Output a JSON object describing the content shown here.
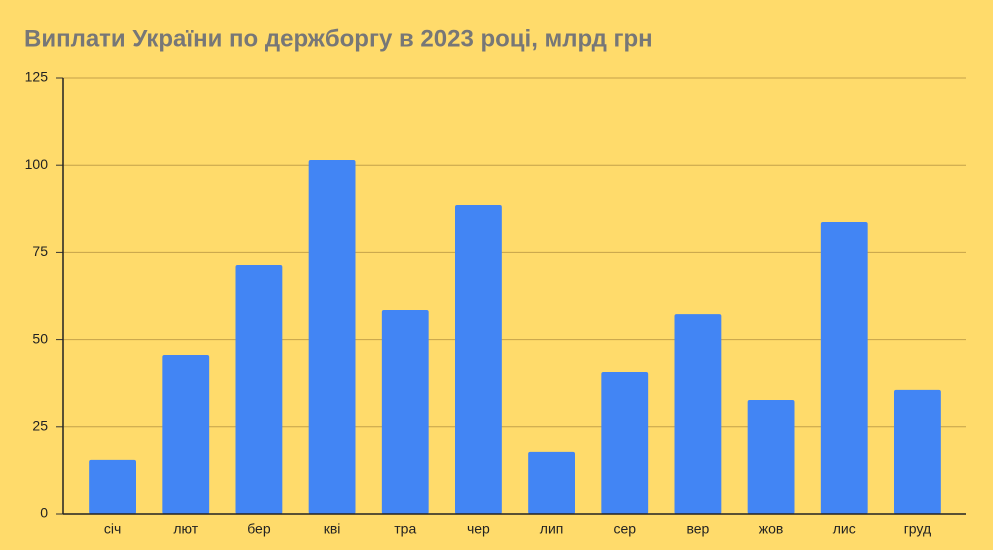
{
  "chart_data": {
    "type": "bar",
    "title": "Виплати України по держборгу в 2023 році, млрд грн",
    "categories": [
      "січ",
      "лют",
      "бер",
      "кві",
      "тра",
      "чер",
      "лип",
      "сер",
      "вер",
      "жов",
      "лис",
      "груд"
    ],
    "values": [
      15.5,
      45.6,
      71.4,
      101.5,
      58.5,
      88.6,
      17.8,
      40.7,
      57.3,
      32.7,
      83.7,
      35.6
    ],
    "color": "#4285f4",
    "ylim": [
      0,
      125
    ],
    "yticks": [
      0,
      25,
      50,
      75,
      100,
      125
    ],
    "grid": true
  }
}
